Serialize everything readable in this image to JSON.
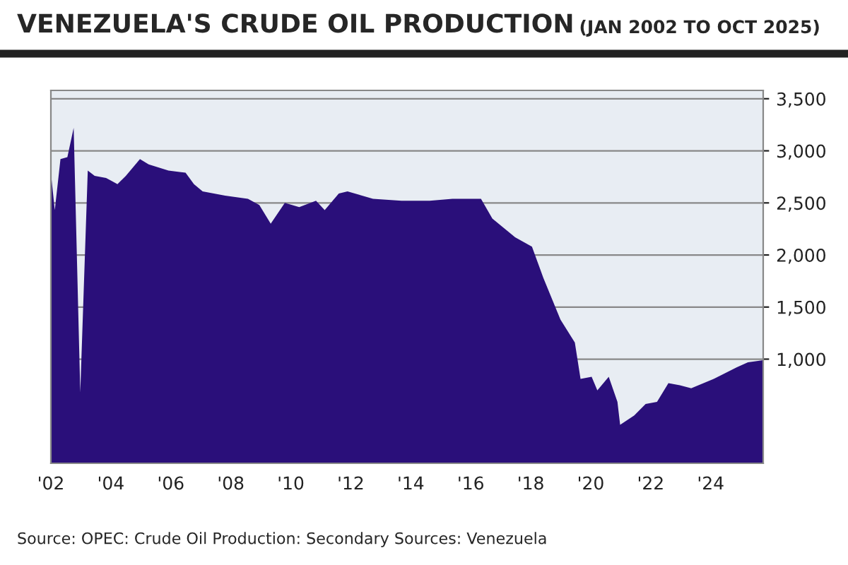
{
  "chart_data": {
    "type": "area",
    "title": "VENEZUELA'S CRUDE OIL PRODUCTION",
    "subtitle": "(JAN 2002 TO OCT 2025)",
    "annotations": [
      "Source: OPEC: Crude Oil Production: Secondary Sources: Venezuela"
    ],
    "series": [
      {
        "color": "#2a0f7a",
        "x": [
          2002.0,
          2002.13,
          2002.32,
          2002.55,
          2002.76,
          2002.98,
          2003.23,
          2003.46,
          2003.84,
          2004.22,
          2004.5,
          2004.97,
          2005.26,
          2005.92,
          2006.49,
          2006.77,
          2007.06,
          2007.81,
          2008.57,
          2008.95,
          2009.33,
          2009.8,
          2010.28,
          2010.84,
          2011.13,
          2011.6,
          2011.89,
          2012.74,
          2013.69,
          2014.63,
          2015.39,
          2016.34,
          2016.72,
          2017.48,
          2018.04,
          2018.42,
          2018.99,
          2019.47,
          2019.66,
          2020.03,
          2020.22,
          2020.6,
          2020.89,
          2020.98,
          2021.45,
          2021.83,
          2022.21,
          2022.59,
          2022.97,
          2023.35,
          2024.1,
          2024.86,
          2025.24,
          2025.75
        ],
        "values": [
          2790,
          2430,
          2920,
          2940,
          3220,
          680,
          2810,
          2760,
          2740,
          2680,
          2760,
          2920,
          2870,
          2810,
          2790,
          2680,
          2610,
          2570,
          2540,
          2480,
          2300,
          2500,
          2460,
          2520,
          2430,
          2590,
          2610,
          2540,
          2520,
          2520,
          2540,
          2540,
          2350,
          2170,
          2080,
          1780,
          1380,
          1160,
          810,
          830,
          700,
          830,
          590,
          370,
          460,
          570,
          590,
          770,
          750,
          720,
          810,
          920,
          970,
          990
        ]
      }
    ],
    "xlim": [
      2002.0,
      2025.75
    ],
    "xticks": [
      {
        "value": 2002,
        "label": "'02"
      },
      {
        "value": 2004,
        "label": "'04"
      },
      {
        "value": 2006,
        "label": "'06"
      },
      {
        "value": 2008,
        "label": "'08"
      },
      {
        "value": 2010,
        "label": "'10"
      },
      {
        "value": 2012,
        "label": "'12"
      },
      {
        "value": 2014,
        "label": "'14"
      },
      {
        "value": 2016,
        "label": "'16"
      },
      {
        "value": 2018,
        "label": "'18"
      },
      {
        "value": 2020,
        "label": "'20"
      },
      {
        "value": 2022,
        "label": "'22"
      },
      {
        "value": 2024,
        "label": "'24"
      }
    ],
    "ylim": [
      0,
      3580
    ],
    "yticks": [
      {
        "value": 1000,
        "label": "1,000"
      },
      {
        "value": 1500,
        "label": "1,500"
      },
      {
        "value": 2000,
        "label": "2,000"
      },
      {
        "value": 2500,
        "label": "2,500"
      },
      {
        "value": 3000,
        "label": "3,000"
      },
      {
        "value": 3500,
        "label": "3,500"
      }
    ],
    "grid": "y",
    "legend": false
  }
}
